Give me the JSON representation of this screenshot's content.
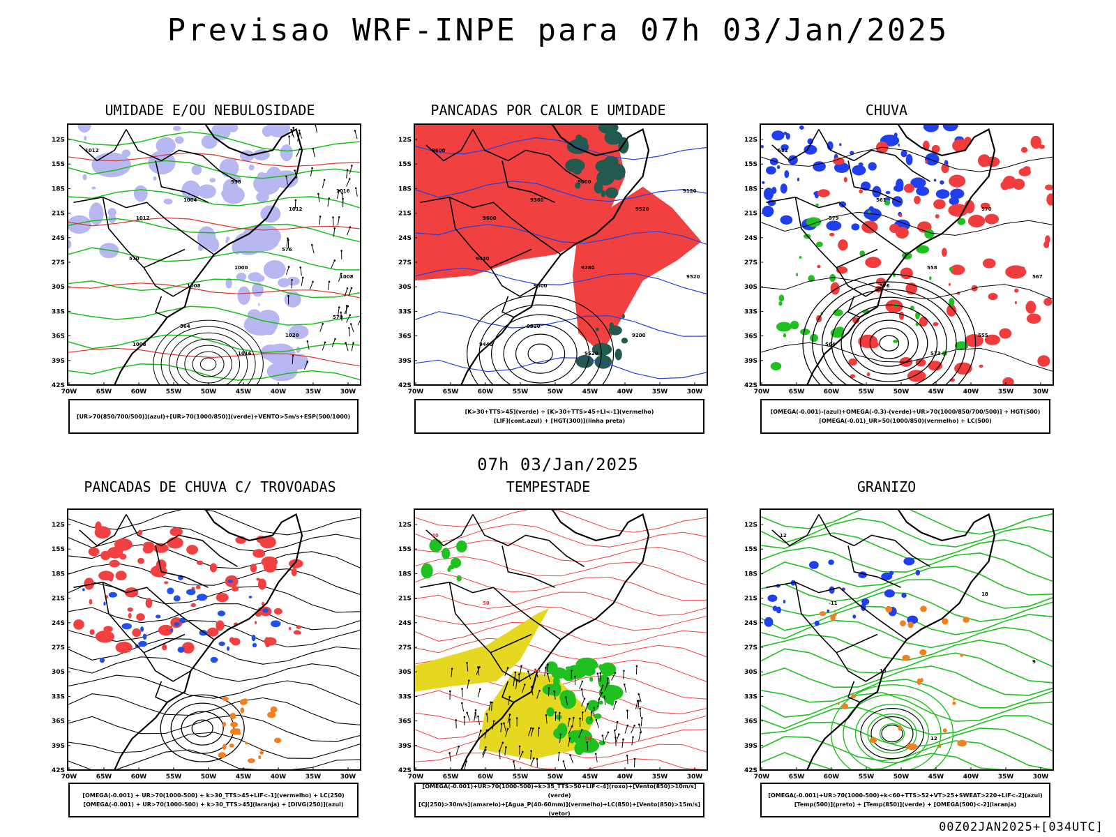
{
  "header": {
    "title": "Previsao WRF-INPE  para 07h 03/Jan/2025"
  },
  "timestamp": "07h 03/Jan/2025",
  "footer": "00Z02JAN2025+[034UTC]",
  "axes": {
    "lat_labels": [
      "12S",
      "15S",
      "18S",
      "21S",
      "24S",
      "27S",
      "30S",
      "33S",
      "36S",
      "39S",
      "42S"
    ],
    "lon_labels": [
      "70W",
      "65W",
      "60W",
      "55W",
      "50W",
      "45W",
      "40W",
      "35W",
      "30W"
    ]
  },
  "panels": [
    {
      "title": "UMIDADE E/OU NEBULOSIDADE",
      "legend": [
        "[UR>70(850/700/500)](azul)+[UR>70(1000/850)](verde)+VENTO>5m/s+ESP(500/1000)"
      ],
      "contour_labels": [
        "1012",
        "1012",
        "1008",
        "1016",
        "1012",
        "1008",
        "1008",
        "1004",
        "1000",
        "1020",
        "1016",
        "570",
        "564",
        "558",
        "576",
        "570"
      ]
    },
    {
      "title": "PANCADAS POR CALOR E UMIDADE",
      "legend": [
        "[K>30+TTS>45](verde) + [K>30+TTS>45+LI<-1](vermelho)",
        "[LIF](cont.azul) + [HGT(300)](linha preta)"
      ],
      "contour_labels": [
        "9600",
        "9600",
        "9600",
        "9520",
        "9520",
        "9520",
        "9440",
        "9360",
        "9280",
        "9200",
        "9120",
        "9440",
        "9520",
        "9600"
      ]
    },
    {
      "title": "CHUVA",
      "legend": [
        "[OMEGA(-0.001)-(azul)+OMEGA(-0.3)-(verde)+UR>70(1000/850/700/500)] + HGT(500)",
        "[OMEGA(-0.01)_UR>50(1000/850)(vermelho) + LC(500)"
      ],
      "contour_labels": [
        "582",
        "579",
        "576",
        "573",
        "570",
        "567",
        "564",
        "561",
        "558",
        "555"
      ]
    },
    {
      "title": "PANCADAS DE CHUVA C/ TROVOADAS",
      "legend": [
        "[OMEGA(-0.001) + UR>70(1000-500) + k>30_TTS>45+LIF<-1](vermelho) + LC(250)",
        "[OMEGA(-0.001) + UR>70(1000-500) + k>30_TTS>45](laranja) + [DIVG(250)](azul)"
      ],
      "contour_labels": []
    },
    {
      "title": "TEMPESTADE",
      "legend": [
        "[OMEGA(-0.001)+UR>70(1000-500)+k>35_TTS>50+LIF<-4](roxo)+[Vento(850)>10m/s](verde)",
        "[CJ(250)>30m/s](amarelo)+[Agua_P(40-60mm)](vermelho)+LC(850)+[Vento(850)>15m/s](vetor)"
      ],
      "contour_labels": [
        "40",
        "50",
        "40",
        "50"
      ]
    },
    {
      "title": "GRANIZO",
      "legend": [
        "[OMEGA(-0.001)+UR>70(1000-500)+k<60+TTS>52+VT>25+SWEAT>220+LIF<-2](azul)",
        "[Temp(500)](preto) + [Temp(850)](verde) + [OMEGA(500)<-2](laranja)"
      ],
      "contour_labels": [
        "-12",
        "-11",
        "15",
        "12",
        "18",
        "9"
      ]
    }
  ]
}
